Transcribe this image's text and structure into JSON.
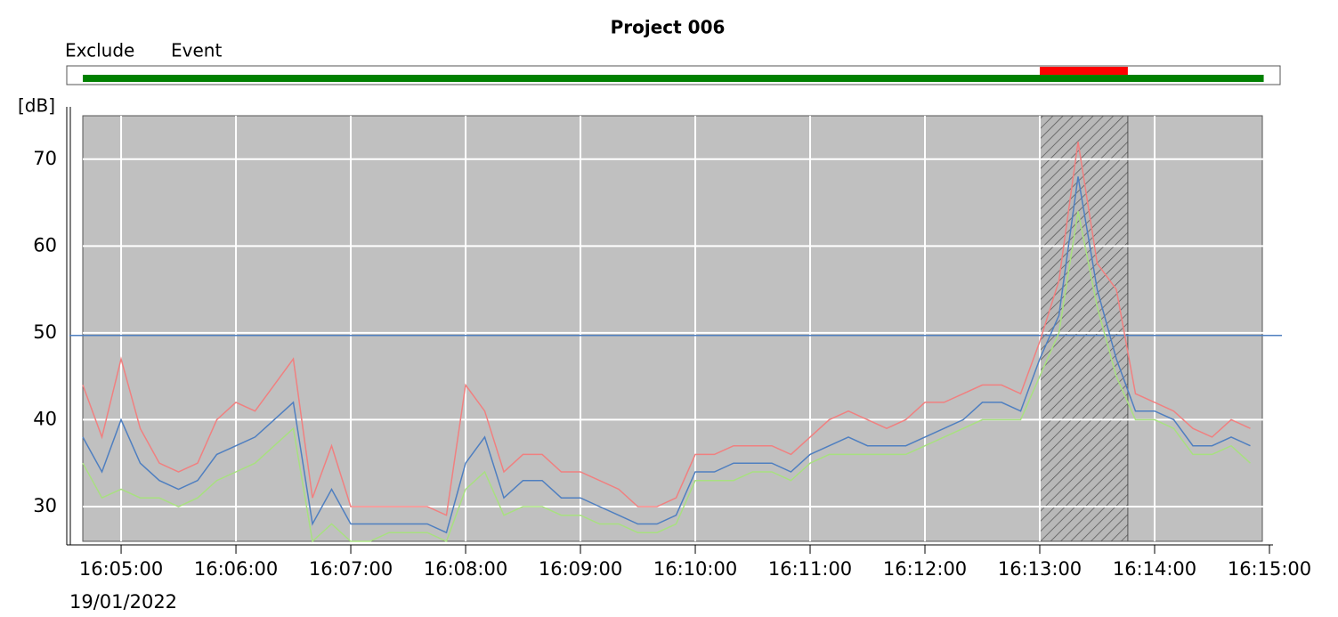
{
  "chart_data": {
    "type": "line",
    "title": "Project 006",
    "y_label": "[dB]",
    "date_label": "19/01/2022",
    "exclude": {
      "label": "Exclude",
      "color": "#ff0000",
      "range": [
        "16:13:00",
        "16:13:46"
      ]
    },
    "event": {
      "label": "Event",
      "color": "#008000",
      "range": [
        "16:04:40",
        "16:14:57"
      ]
    },
    "threshold": 49.7,
    "threshold_color": "#4f7fc0",
    "background": "#c0c0c0",
    "grid": true,
    "xlim": [
      "16:04:33",
      "16:15:00"
    ],
    "xticks": [
      "16:05:00",
      "16:06:00",
      "16:07:00",
      "16:08:00",
      "16:09:00",
      "16:10:00",
      "16:11:00",
      "16:12:00",
      "16:13:00",
      "16:14:00",
      "16:15:00"
    ],
    "ylim": [
      26,
      75
    ],
    "yticks": [
      30,
      40,
      50,
      60,
      70
    ],
    "x": [
      "16:04:40",
      "16:04:50",
      "16:05:00",
      "16:05:10",
      "16:05:20",
      "16:05:30",
      "16:05:40",
      "16:05:50",
      "16:06:00",
      "16:06:10",
      "16:06:20",
      "16:06:30",
      "16:06:40",
      "16:06:50",
      "16:07:00",
      "16:07:10",
      "16:07:20",
      "16:07:30",
      "16:07:40",
      "16:07:50",
      "16:08:00",
      "16:08:10",
      "16:08:20",
      "16:08:30",
      "16:08:40",
      "16:08:50",
      "16:09:00",
      "16:09:10",
      "16:09:20",
      "16:09:30",
      "16:09:40",
      "16:09:50",
      "16:10:00",
      "16:10:10",
      "16:10:20",
      "16:10:30",
      "16:10:40",
      "16:10:50",
      "16:11:00",
      "16:11:10",
      "16:11:20",
      "16:11:30",
      "16:11:40",
      "16:11:50",
      "16:12:00",
      "16:12:10",
      "16:12:20",
      "16:12:30",
      "16:12:40",
      "16:12:50",
      "16:13:00",
      "16:13:10",
      "16:13:20",
      "16:13:30",
      "16:13:40",
      "16:13:50",
      "16:14:00",
      "16:14:10",
      "16:14:20",
      "16:14:30",
      "16:14:40",
      "16:14:50"
    ],
    "series": [
      {
        "color": "#f08080",
        "values": [
          44,
          38,
          47,
          39,
          35,
          34,
          35,
          40,
          42,
          41,
          44,
          47,
          31,
          37,
          30,
          30,
          30,
          30,
          30,
          29,
          44,
          41,
          34,
          36,
          36,
          34,
          34,
          33,
          32,
          30,
          30,
          31,
          36,
          36,
          37,
          37,
          37,
          36,
          38,
          40,
          41,
          40,
          39,
          40,
          42,
          42,
          43,
          44,
          44,
          43,
          49,
          56,
          72,
          58,
          55,
          43,
          42,
          41,
          39,
          38,
          40,
          39
        ]
      },
      {
        "color": "#4f7fc0",
        "values": [
          38,
          34,
          40,
          35,
          33,
          32,
          33,
          36,
          37,
          38,
          40,
          42,
          28,
          32,
          28,
          28,
          28,
          28,
          28,
          27,
          35,
          38,
          31,
          33,
          33,
          31,
          31,
          30,
          29,
          28,
          28,
          29,
          34,
          34,
          35,
          35,
          35,
          34,
          36,
          37,
          38,
          37,
          37,
          37,
          38,
          39,
          40,
          42,
          42,
          41,
          47,
          52,
          68,
          55,
          47,
          41,
          41,
          40,
          37,
          37,
          38,
          37
        ]
      },
      {
        "color": "#a8e080",
        "values": [
          35,
          31,
          32,
          31,
          31,
          30,
          31,
          33,
          34,
          35,
          37,
          39,
          26,
          28,
          26,
          26,
          27,
          27,
          27,
          26,
          32,
          34,
          29,
          30,
          30,
          29,
          29,
          28,
          28,
          27,
          27,
          28,
          33,
          33,
          33,
          34,
          34,
          33,
          35,
          36,
          36,
          36,
          36,
          36,
          37,
          38,
          39,
          40,
          40,
          40,
          45,
          50,
          64,
          53,
          45,
          40,
          40,
          39,
          36,
          36,
          37,
          35
        ]
      }
    ]
  }
}
